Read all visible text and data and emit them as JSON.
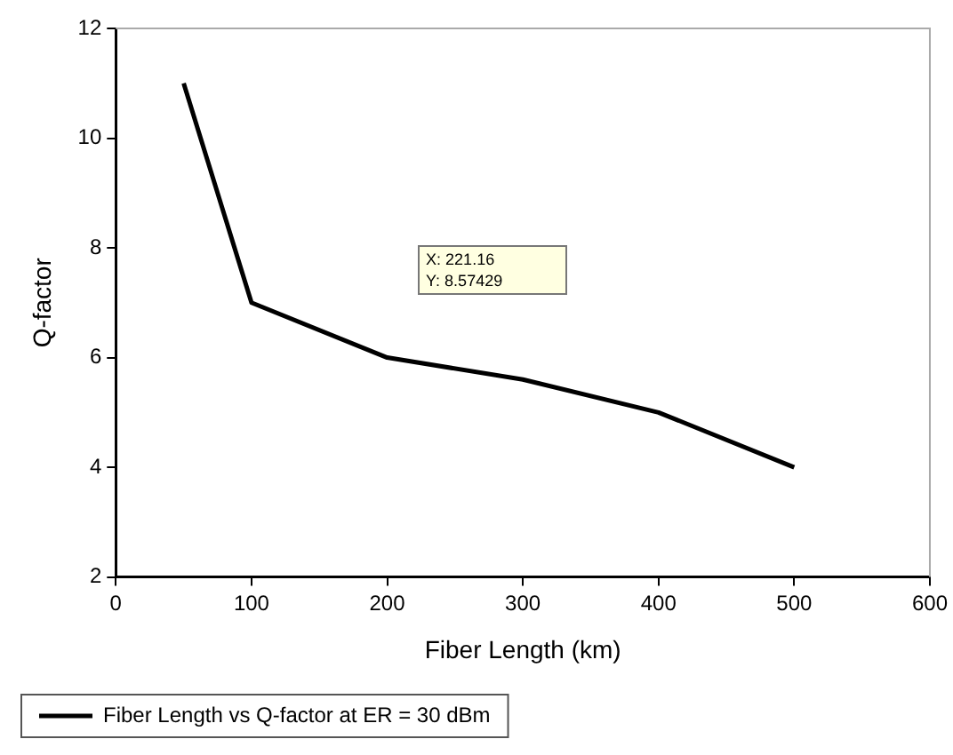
{
  "chart_data": {
    "type": "line",
    "xlabel": "Fiber Length (km)",
    "ylabel": "Q-factor",
    "x": [
      50,
      100,
      200,
      300,
      400,
      500
    ],
    "series": [
      {
        "name": "Fiber Length vs Q-factor at ER = 30 dBm",
        "color": "#000000",
        "values": [
          11,
          7,
          6,
          5.6,
          5,
          4
        ]
      }
    ],
    "xlim": [
      0,
      600
    ],
    "xticks": [
      0,
      100,
      200,
      300,
      400,
      500,
      600
    ],
    "ylim": [
      2,
      12
    ],
    "yticks": [
      2,
      4,
      6,
      8,
      10,
      12
    ],
    "grid": false,
    "legend": "bottom left",
    "marker": "none",
    "line_style": "solid",
    "annotations": [
      "X: 221.16\nY: 8.57429"
    ]
  }
}
